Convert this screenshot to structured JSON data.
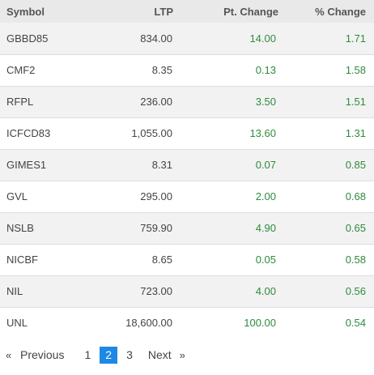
{
  "table": {
    "headers": {
      "symbol": "Symbol",
      "ltp": "LTP",
      "pt_change": "Pt. Change",
      "pct_change": "% Change"
    },
    "rows": [
      {
        "symbol": "GBBD85",
        "ltp": "834.00",
        "pt_change": "14.00",
        "pct_change": "1.71"
      },
      {
        "symbol": "CMF2",
        "ltp": "8.35",
        "pt_change": "0.13",
        "pct_change": "1.58"
      },
      {
        "symbol": "RFPL",
        "ltp": "236.00",
        "pt_change": "3.50",
        "pct_change": "1.51"
      },
      {
        "symbol": "ICFCD83",
        "ltp": "1,055.00",
        "pt_change": "13.60",
        "pct_change": "1.31"
      },
      {
        "symbol": "GIMES1",
        "ltp": "8.31",
        "pt_change": "0.07",
        "pct_change": "0.85"
      },
      {
        "symbol": "GVL",
        "ltp": "295.00",
        "pt_change": "2.00",
        "pct_change": "0.68"
      },
      {
        "symbol": "NSLB",
        "ltp": "759.90",
        "pt_change": "4.90",
        "pct_change": "0.65"
      },
      {
        "symbol": "NICBF",
        "ltp": "8.65",
        "pt_change": "0.05",
        "pct_change": "0.58"
      },
      {
        "symbol": "NIL",
        "ltp": "723.00",
        "pt_change": "4.00",
        "pct_change": "0.56"
      },
      {
        "symbol": "UNL",
        "ltp": "18,600.00",
        "pt_change": "100.00",
        "pct_change": "0.54"
      }
    ]
  },
  "pagination": {
    "first_arrow": "«",
    "previous_label": "Previous",
    "pages": [
      "1",
      "2",
      "3"
    ],
    "current_page": "2",
    "next_label": "Next",
    "last_arrow": "»"
  },
  "colors": {
    "positive": "#2e8b3c",
    "current_page_bg": "#1e88e5",
    "header_bg": "#e9e9e9",
    "stripe_bg": "#f2f2f2"
  }
}
